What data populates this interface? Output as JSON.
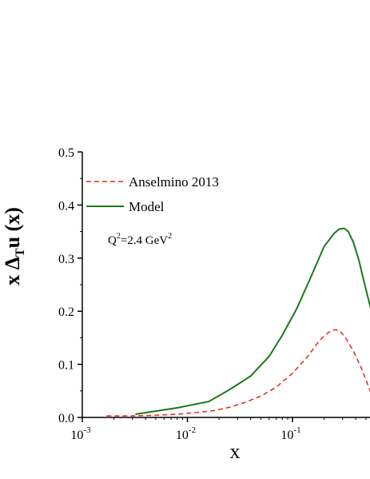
{
  "chart_data": {
    "type": "line",
    "xlabel": "x",
    "ylabel": {
      "main_before": "x Δ",
      "sub": "T",
      "main_after": "u (x)"
    },
    "xscale": "log",
    "xlim": [
      0.001,
      0.6
    ],
    "ylim": [
      0.0,
      0.5
    ],
    "x_ticks": [
      {
        "value": 0.001,
        "base": "10",
        "exp": "-3"
      },
      {
        "value": 0.01,
        "base": "10",
        "exp": "-2"
      },
      {
        "value": 0.1,
        "base": "10",
        "exp": "-1"
      }
    ],
    "y_ticks": [
      {
        "value": 0.0,
        "label": "0.0"
      },
      {
        "value": 0.1,
        "label": "0.1"
      },
      {
        "value": 0.2,
        "label": "0.2"
      },
      {
        "value": 0.3,
        "label": "0.3"
      },
      {
        "value": 0.4,
        "label": "0.4"
      },
      {
        "value": 0.5,
        "label": "0.5"
      }
    ],
    "annotation": {
      "q": "Q",
      "q_exp": "2",
      "mid": "=2.4 GeV",
      "unit_exp": "2"
    },
    "legend_position": "top-left",
    "grid": false,
    "series": [
      {
        "name": "Anselmino 2013",
        "style": "dashed",
        "color": "#e8261c",
        "x": [
          0.0017,
          0.003,
          0.005,
          0.008,
          0.012,
          0.018,
          0.025,
          0.035,
          0.05,
          0.07,
          0.1,
          0.14,
          0.18,
          0.22,
          0.25,
          0.28,
          0.32,
          0.38,
          0.45,
          0.52,
          0.6
        ],
        "y": [
          0.003,
          0.003,
          0.004,
          0.006,
          0.009,
          0.013,
          0.019,
          0.028,
          0.04,
          0.057,
          0.083,
          0.115,
          0.145,
          0.16,
          0.165,
          0.164,
          0.15,
          0.125,
          0.094,
          0.062,
          0.03
        ]
      },
      {
        "name": "Model",
        "style": "solid",
        "color": "#1a7a1a",
        "x": [
          0.0032,
          0.008,
          0.016,
          0.025,
          0.04,
          0.06,
          0.08,
          0.11,
          0.15,
          0.2,
          0.25,
          0.28,
          0.31,
          0.34,
          0.38,
          0.43,
          0.48,
          0.54,
          0.6
        ],
        "y": [
          0.006,
          0.018,
          0.03,
          0.052,
          0.078,
          0.115,
          0.155,
          0.205,
          0.265,
          0.322,
          0.347,
          0.355,
          0.356,
          0.35,
          0.33,
          0.295,
          0.255,
          0.215,
          0.18
        ]
      }
    ]
  }
}
